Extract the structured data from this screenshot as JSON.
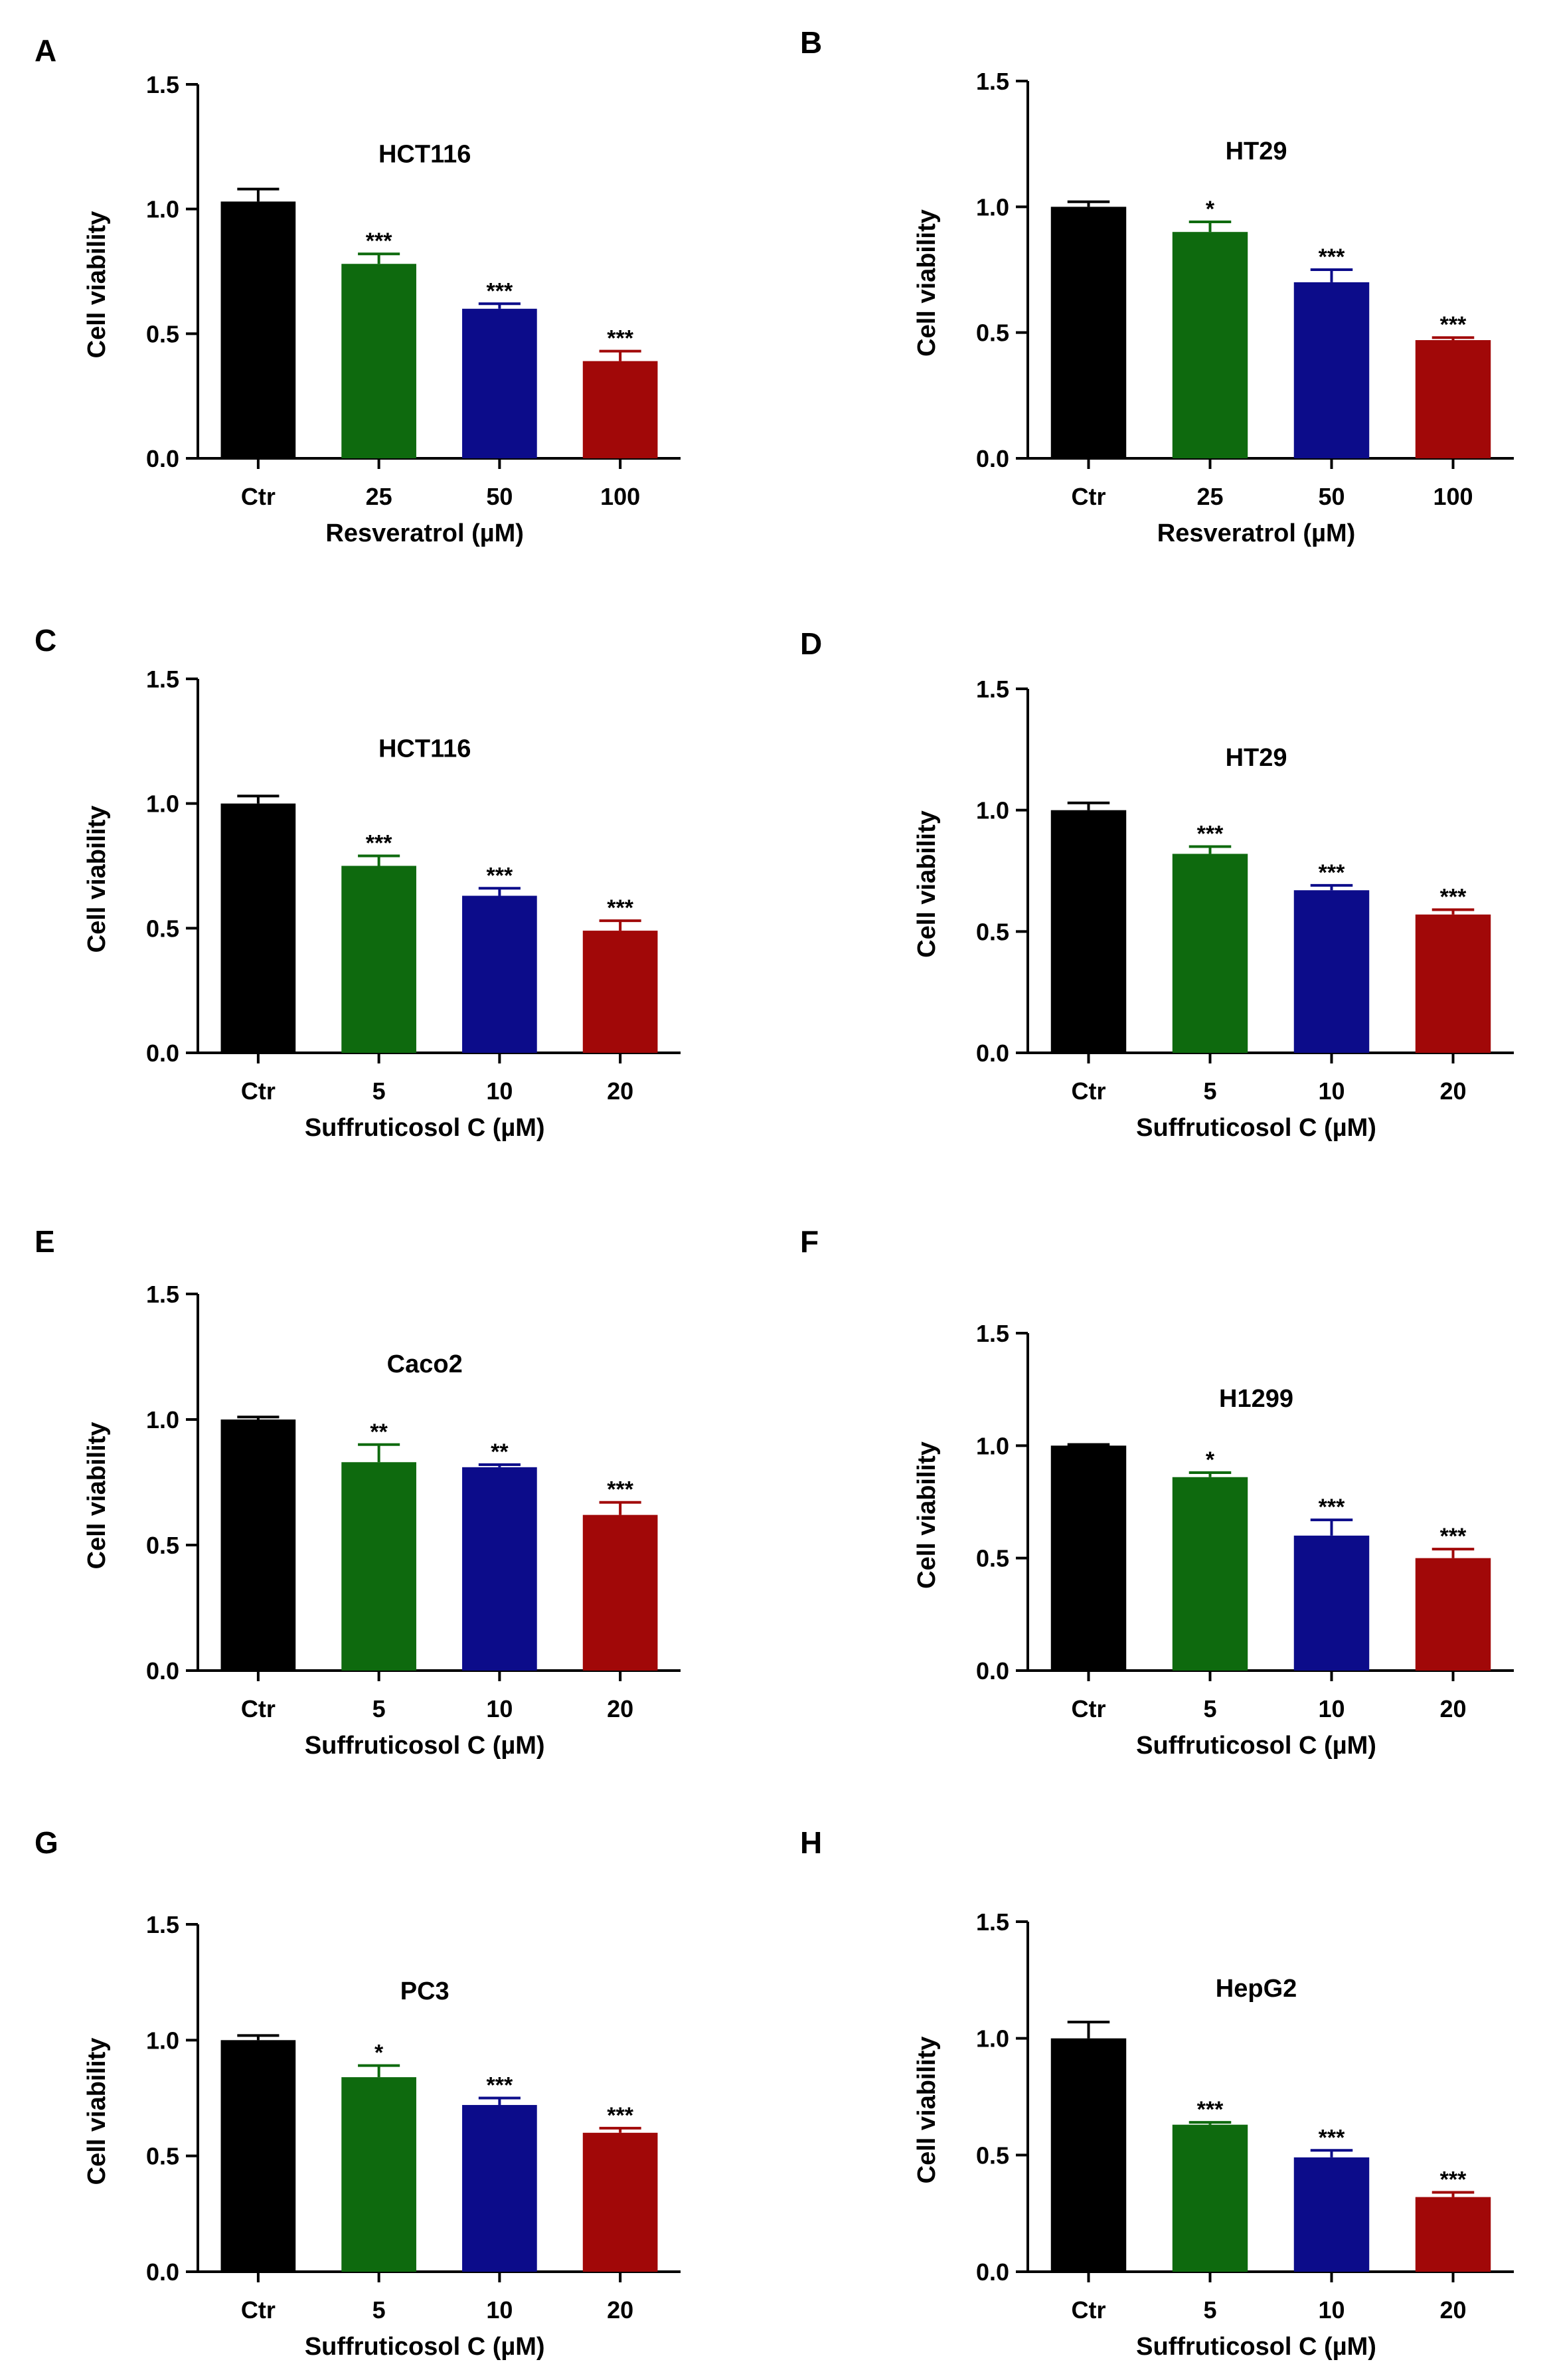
{
  "colors": {
    "axis": "#000000",
    "bars": [
      "#000000",
      "#0e6a0e",
      "#0c0c8a",
      "#a10808"
    ]
  },
  "chart_data": [
    {
      "panel": "A",
      "type": "bar",
      "title": "HCT116",
      "xlabel": "Resveratrol (µM)",
      "ylabel": "Cell viability",
      "ylim": [
        0,
        1.5
      ],
      "yticks": [
        "0.0",
        "0.5",
        "1.0",
        "1.5"
      ],
      "categories": [
        "Ctr",
        "25",
        "50",
        "100"
      ],
      "values": [
        1.03,
        0.78,
        0.6,
        0.39
      ],
      "errors": [
        0.05,
        0.04,
        0.02,
        0.04
      ],
      "significance": [
        "",
        "***",
        "***",
        "***"
      ]
    },
    {
      "panel": "B",
      "type": "bar",
      "title": "HT29",
      "xlabel": "Resveratrol (µM)",
      "ylabel": "Cell viability",
      "ylim": [
        0,
        1.5
      ],
      "yticks": [
        "0.0",
        "0.5",
        "1.0",
        "1.5"
      ],
      "categories": [
        "Ctr",
        "25",
        "50",
        "100"
      ],
      "values": [
        1.0,
        0.9,
        0.7,
        0.47
      ],
      "errors": [
        0.02,
        0.04,
        0.05,
        0.01
      ],
      "significance": [
        "",
        "*",
        "***",
        "***"
      ]
    },
    {
      "panel": "C",
      "type": "bar",
      "title": "HCT116",
      "xlabel": "Suffruticosol C (µM)",
      "ylabel": "Cell viability",
      "ylim": [
        0,
        1.5
      ],
      "yticks": [
        "0.0",
        "0.5",
        "1.0",
        "1.5"
      ],
      "categories": [
        "Ctr",
        "5",
        "10",
        "20"
      ],
      "values": [
        1.0,
        0.75,
        0.63,
        0.49
      ],
      "errors": [
        0.03,
        0.04,
        0.03,
        0.04
      ],
      "significance": [
        "",
        "***",
        "***",
        "***"
      ]
    },
    {
      "panel": "D",
      "type": "bar",
      "title": "HT29",
      "xlabel": "Suffruticosol C (µM)",
      "ylabel": "Cell viability",
      "ylim": [
        0,
        1.5
      ],
      "yticks": [
        "0.0",
        "0.5",
        "1.0",
        "1.5"
      ],
      "categories": [
        "Ctr",
        "5",
        "10",
        "20"
      ],
      "values": [
        1.0,
        0.82,
        0.67,
        0.57
      ],
      "errors": [
        0.03,
        0.03,
        0.02,
        0.02
      ],
      "significance": [
        "",
        "***",
        "***",
        "***"
      ]
    },
    {
      "panel": "E",
      "type": "bar",
      "title": "Caco2",
      "xlabel": "Suffruticosol C (µM)",
      "ylabel": "Cell viability",
      "ylim": [
        0,
        1.5
      ],
      "yticks": [
        "0.0",
        "0.5",
        "1.0",
        "1.5"
      ],
      "categories": [
        "Ctr",
        "5",
        "10",
        "20"
      ],
      "values": [
        1.0,
        0.83,
        0.81,
        0.62
      ],
      "errors": [
        0.01,
        0.07,
        0.01,
        0.05
      ],
      "significance": [
        "",
        "**",
        "**",
        "***"
      ]
    },
    {
      "panel": "F",
      "type": "bar",
      "title": "H1299",
      "xlabel": "Suffruticosol C (µM)",
      "ylabel": "Cell viability",
      "ylim": [
        0,
        1.5
      ],
      "yticks": [
        "0.0",
        "0.5",
        "1.0",
        "1.5"
      ],
      "categories": [
        "Ctr",
        "5",
        "10",
        "20"
      ],
      "values": [
        1.0,
        0.86,
        0.6,
        0.5
      ],
      "errors": [
        0.005,
        0.02,
        0.07,
        0.04
      ],
      "significance": [
        "",
        "*",
        "***",
        "***"
      ]
    },
    {
      "panel": "G",
      "type": "bar",
      "title": "PC3",
      "xlabel": "Suffruticosol C (µM)",
      "ylabel": "Cell viability",
      "ylim": [
        0,
        1.5
      ],
      "yticks": [
        "0.0",
        "0.5",
        "1.0",
        "1.5"
      ],
      "categories": [
        "Ctr",
        "5",
        "10",
        "20"
      ],
      "values": [
        1.0,
        0.84,
        0.72,
        0.6
      ],
      "errors": [
        0.02,
        0.05,
        0.03,
        0.02
      ],
      "significance": [
        "",
        "*",
        "***",
        "***"
      ]
    },
    {
      "panel": "H",
      "type": "bar",
      "title": "HepG2",
      "xlabel": "Suffruticosol C (µM)",
      "ylabel": "Cell viability",
      "ylim": [
        0,
        1.5
      ],
      "yticks": [
        "0.0",
        "0.5",
        "1.0",
        "1.5"
      ],
      "categories": [
        "Ctr",
        "5",
        "10",
        "20"
      ],
      "values": [
        1.0,
        0.63,
        0.49,
        0.32
      ],
      "errors": [
        0.07,
        0.01,
        0.03,
        0.02
      ],
      "significance": [
        "",
        "***",
        "***",
        "***"
      ]
    }
  ]
}
